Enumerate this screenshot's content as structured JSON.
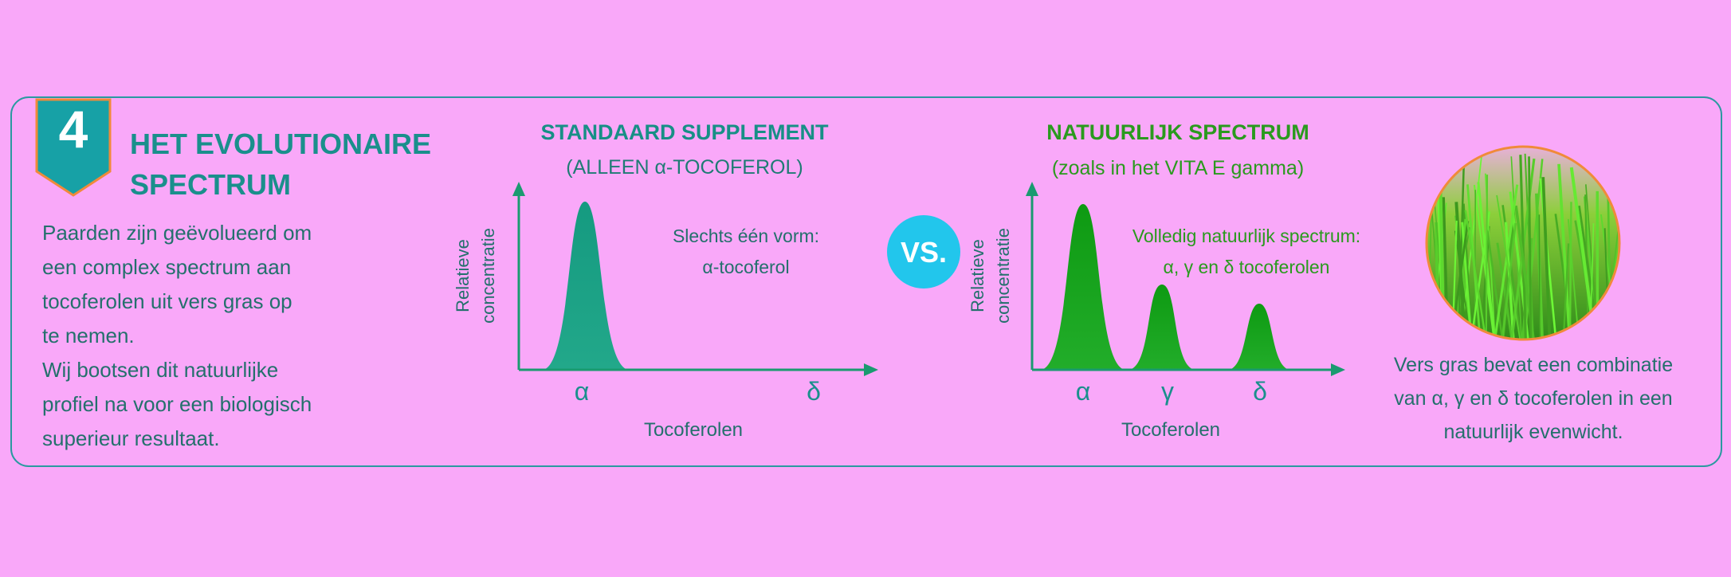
{
  "badge": "4",
  "header": {
    "title_lines": [
      "HET EVOLUTIONAIRE",
      "SPECTRUM"
    ]
  },
  "intro": {
    "lines": [
      "Paarden zijn geëvolueerd om",
      "een complex spectrum aan",
      "tocoferolen uit vers gras op",
      "te nemen.",
      "Wij bootsen dit natuurlijke",
      "profiel na voor een biologisch",
      "superieur resultaat."
    ]
  },
  "standard": {
    "title": "STANDAARD SUPPLEMENT",
    "subtitle": "(ALLEEN α-TOCOFEROL)",
    "y_label_lines": [
      "Relatieve",
      "concentratie"
    ],
    "x_label": "Tocoferolen",
    "note_lines": [
      "Slechts één vorm:",
      "α-tocoferol"
    ],
    "x_markers": [
      "α",
      "δ"
    ]
  },
  "vs": "VS.",
  "natural": {
    "title": "NATUURLIJK SPECTRUM",
    "subtitle": "(zoals in het VITA E gamma)",
    "y_label_lines": [
      "Relatieve",
      "concentratie"
    ],
    "x_label": "Tocoferolen",
    "note_lines": [
      "Volledig natuurlijk spectrum:",
      "α, γ en δ tocoferolen"
    ],
    "x_markers": [
      "α",
      "γ",
      "δ"
    ]
  },
  "caption": {
    "lines": [
      "Vers gras bevat een combinatie",
      "van α, γ en δ tocoferolen in een",
      "natuurlijk evenwicht."
    ]
  }
}
